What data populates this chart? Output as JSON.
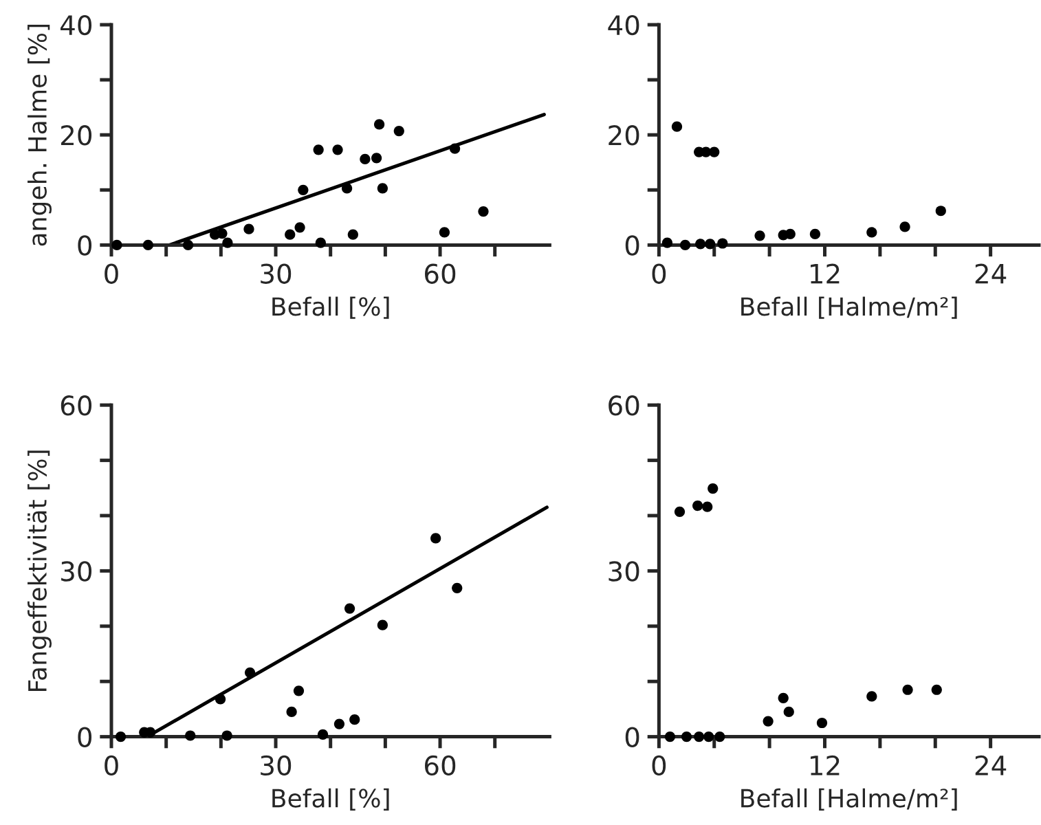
{
  "chart_data": [
    {
      "type": "scatter",
      "xlabel": "Befall [%]",
      "ylabel": "angeh. Halme [%]",
      "xlim": [
        0,
        80
      ],
      "ylim": [
        0,
        40
      ],
      "xticks": [
        0,
        {
          "value": 10,
          "label": null
        },
        {
          "value": 20,
          "label": null
        },
        30,
        {
          "value": 40,
          "label": null
        },
        {
          "value": 50,
          "label": null
        },
        60,
        {
          "value": 70,
          "label": null
        }
      ],
      "yticks": [
        0,
        {
          "value": 10,
          "label": null
        },
        20,
        {
          "value": 30,
          "label": null
        },
        40
      ],
      "series": [
        {
          "marker": "circle",
          "color": "#000000",
          "x": [
            1,
            6.7,
            14,
            18.9,
            20.2,
            21.2,
            25.1,
            32.6,
            34.4,
            35,
            37.8,
            38.2,
            41.3,
            43,
            44.1,
            46.3,
            48.4,
            48.9,
            49.5,
            52.5,
            60.8,
            62.7,
            67.9
          ],
          "values": [
            0,
            0,
            0,
            1.9,
            2.1,
            0.4,
            2.9,
            1.9,
            3.2,
            10,
            17.3,
            0.4,
            17.3,
            10.3,
            1.9,
            15.6,
            15.8,
            21.9,
            10.3,
            20.7,
            2.3,
            17.5,
            6.1
          ]
        },
        {
          "type": "line",
          "color": "#000000",
          "x": [
            10.6,
            79
          ],
          "values": [
            0,
            23.7
          ]
        }
      ]
    },
    {
      "type": "scatter",
      "xlabel": "Befall [Halme/m²]",
      "xlim": [
        0,
        27.5
      ],
      "ylim": [
        0,
        40
      ],
      "xticks": [
        0,
        {
          "value": 4,
          "label": null
        },
        {
          "value": 8,
          "label": null
        },
        12,
        {
          "value": 16,
          "label": null
        },
        {
          "value": 20,
          "label": null
        },
        24
      ],
      "yticks": [
        0,
        {
          "value": 10,
          "label": null
        },
        20,
        {
          "value": 30,
          "label": null
        },
        40
      ],
      "series": [
        {
          "marker": "circle",
          "color": "#000000",
          "x": [
            0.6,
            1.3,
            1.9,
            2.9,
            3.4,
            4.0,
            3.0,
            3.7,
            4.6,
            7.3,
            9.0,
            9.5,
            11.3,
            15.4,
            17.8,
            20.4
          ],
          "values": [
            0.4,
            21.5,
            0,
            16.9,
            16.9,
            16.9,
            0.2,
            0.2,
            0.3,
            1.7,
            1.8,
            2.0,
            2.0,
            2.3,
            3.3,
            6.2
          ]
        }
      ]
    },
    {
      "type": "scatter",
      "xlabel": "Befall [%]",
      "ylabel": "Fangeffektivität [%]",
      "xlim": [
        0,
        80
      ],
      "ylim": [
        0,
        60
      ],
      "xticks": [
        0,
        {
          "value": 10,
          "label": null
        },
        {
          "value": 20,
          "label": null
        },
        30,
        {
          "value": 40,
          "label": null
        },
        {
          "value": 50,
          "label": null
        },
        60,
        {
          "value": 70,
          "label": null
        }
      ],
      "yticks": [
        0,
        {
          "value": 10,
          "label": null
        },
        {
          "value": 20,
          "label": null
        },
        30,
        {
          "value": 40,
          "label": null
        },
        {
          "value": 50,
          "label": null
        },
        60
      ],
      "series": [
        {
          "marker": "circle",
          "color": "#000000",
          "x": [
            1.7,
            6,
            7.1,
            14.4,
            19.9,
            21.1,
            25.3,
            32.9,
            34.2,
            38.6,
            41.6,
            43.5,
            44.4,
            49.5,
            59.2,
            63.1
          ],
          "values": [
            0,
            0.8,
            0.8,
            0.2,
            6.8,
            0.2,
            11.6,
            4.5,
            8.3,
            0.4,
            2.3,
            23.2,
            3.1,
            20.2,
            35.9,
            26.9
          ]
        },
        {
          "type": "line",
          "color": "#000000",
          "x": [
            6.5,
            79.5
          ],
          "values": [
            0,
            41.5
          ]
        }
      ]
    },
    {
      "type": "scatter",
      "xlabel": "Befall [Halme/m²]",
      "xlim": [
        0,
        27.5
      ],
      "ylim": [
        0,
        60
      ],
      "xticks": [
        0,
        {
          "value": 4,
          "label": null
        },
        {
          "value": 8,
          "label": null
        },
        12,
        {
          "value": 16,
          "label": null
        },
        {
          "value": 20,
          "label": null
        },
        24
      ],
      "yticks": [
        0,
        {
          "value": 10,
          "label": null
        },
        {
          "value": 20,
          "label": null
        },
        30,
        {
          "value": 40,
          "label": null
        },
        {
          "value": 50,
          "label": null
        },
        60
      ],
      "series": [
        {
          "marker": "circle",
          "color": "#000000",
          "x": [
            0.8,
            1.5,
            2,
            2.8,
            3.5,
            3.9,
            2.9,
            3.6,
            4.4,
            7.9,
            9.0,
            9.4,
            11.8,
            15.4,
            18,
            20.1
          ],
          "values": [
            0,
            40.7,
            0,
            41.8,
            41.6,
            44.9,
            0,
            0,
            0,
            2.8,
            7,
            4.5,
            2.5,
            7.3,
            8.5,
            8.5
          ]
        }
      ]
    }
  ]
}
